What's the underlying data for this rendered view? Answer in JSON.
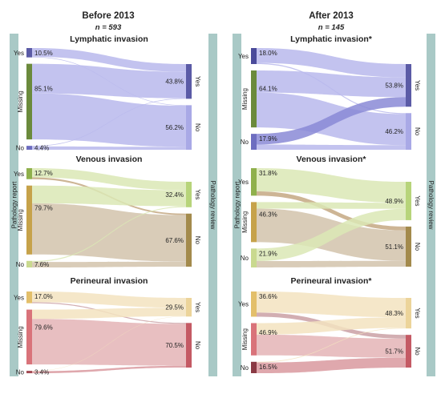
{
  "panels": [
    {
      "title": "Before 2013",
      "subtitle": "n = 593"
    },
    {
      "title": "After 2013",
      "subtitle": "n = 145"
    }
  ],
  "side_labels": {
    "left": "Pathology report",
    "right": "Pathology review"
  },
  "chart_data": [
    {
      "type": "sankey",
      "panel": "Before 2013",
      "subtitle": "n = 593",
      "left_axis_label": "Pathology report",
      "right_axis_label": "Pathology review",
      "colors": {
        "side_bar": "#a9c9c6"
      },
      "charts": [
        {
          "title": "Lymphatic invasion",
          "left_nodes": [
            {
              "label": "Yes",
              "value": "10.5%",
              "pct": 10.5,
              "color": "#5b5ba6"
            },
            {
              "label": "Missing",
              "value": "85.1%",
              "pct": 85.1,
              "color": "#6b8a3c"
            },
            {
              "label": "No",
              "value": "4.4%",
              "pct": 4.4,
              "color": "#6d6dc0"
            }
          ],
          "right_nodes": [
            {
              "label": "Yes",
              "value": "43.8%",
              "pct": 43.8,
              "color": "#5b5ba6"
            },
            {
              "label": "No",
              "value": "56.2%",
              "pct": 56.2,
              "color": "#a9a9e6"
            }
          ],
          "flows": [
            {
              "from": "Yes",
              "to": "Yes",
              "pct": 9.8
            },
            {
              "from": "Yes",
              "to": "No",
              "pct": 0.7
            },
            {
              "from": "Missing",
              "to": "Yes",
              "pct": 33.3
            },
            {
              "from": "Missing",
              "to": "No",
              "pct": 51.8
            },
            {
              "from": "No",
              "to": "Yes",
              "pct": 0.7
            },
            {
              "from": "No",
              "to": "No",
              "pct": 3.7
            }
          ],
          "flow_color": "#b8b8ec"
        },
        {
          "title": "Venous invasion",
          "left_nodes": [
            {
              "label": "Yes",
              "value": "12.7%",
              "pct": 12.7,
              "color": "#8fb04c"
            },
            {
              "label": "Missing",
              "value": "79.7%",
              "pct": 79.7,
              "color": "#c6a24a"
            },
            {
              "label": "No",
              "value": "7.6%",
              "pct": 7.6,
              "color": "#c9d98f"
            }
          ],
          "right_nodes": [
            {
              "label": "Yes",
              "value": "32.4%",
              "pct": 32.4,
              "color": "#b7d47a"
            },
            {
              "label": "No",
              "value": "67.6%",
              "pct": 67.6,
              "color": "#a38a4c"
            }
          ],
          "flows": [
            {
              "from": "Yes",
              "to": "Yes",
              "pct": 10.7,
              "color": "#dbe8b5"
            },
            {
              "from": "Yes",
              "to": "No",
              "pct": 2.0,
              "color": "#c4a882"
            },
            {
              "from": "Missing",
              "to": "Yes",
              "pct": 20.5,
              "color": "#dbe8b5"
            },
            {
              "from": "Missing",
              "to": "No",
              "pct": 59.2,
              "color": "#d2c3ac"
            },
            {
              "from": "No",
              "to": "Yes",
              "pct": 1.2,
              "color": "#dbe8b5"
            },
            {
              "from": "No",
              "to": "No",
              "pct": 6.4,
              "color": "#d2c3ac"
            }
          ]
        },
        {
          "title": "Perineural invasion",
          "left_nodes": [
            {
              "label": "Yes",
              "value": "17.0%",
              "pct": 17.0,
              "color": "#e3bf6a"
            },
            {
              "label": "Missing",
              "value": "79.6%",
              "pct": 79.6,
              "color": "#d9737a"
            },
            {
              "label": "No",
              "value": "3.4%",
              "pct": 3.4,
              "color": "#a34a54"
            }
          ],
          "right_nodes": [
            {
              "label": "Yes",
              "value": "29.5%",
              "pct": 29.5,
              "color": "#ecd49a"
            },
            {
              "label": "No",
              "value": "70.5%",
              "pct": 70.5,
              "color": "#c45a64"
            }
          ],
          "flows": [
            {
              "from": "Yes",
              "to": "Yes",
              "pct": 15.5,
              "color": "#f3e3c0"
            },
            {
              "from": "Yes",
              "to": "No",
              "pct": 1.5,
              "color": "#caa0a4"
            },
            {
              "from": "Missing",
              "to": "Yes",
              "pct": 13.5,
              "color": "#f3e3c0"
            },
            {
              "from": "Missing",
              "to": "No",
              "pct": 66.1,
              "color": "#e4b4b6"
            },
            {
              "from": "No",
              "to": "Yes",
              "pct": 0.5,
              "color": "#f3e3c0"
            },
            {
              "from": "No",
              "to": "No",
              "pct": 2.9,
              "color": "#d9999f"
            }
          ]
        }
      ]
    },
    {
      "type": "sankey",
      "panel": "After 2013",
      "subtitle": "n = 145",
      "left_axis_label": "Pathology report",
      "right_axis_label": "Pathology review",
      "colors": {
        "side_bar": "#a9c9c6"
      },
      "charts": [
        {
          "title": "Lymphatic invasion*",
          "left_nodes": [
            {
              "label": "Yes",
              "value": "18.0%",
              "pct": 18.0,
              "color": "#4a4a9a"
            },
            {
              "label": "Missing",
              "value": "64.1%",
              "pct": 64.1,
              "color": "#6b8a3c"
            },
            {
              "label": "No",
              "value": "17.9%",
              "pct": 17.9,
              "color": "#6d6dc0"
            }
          ],
          "right_nodes": [
            {
              "label": "Yes",
              "value": "53.8%",
              "pct": 53.8,
              "color": "#5b5ba6"
            },
            {
              "label": "No",
              "value": "46.2%",
              "pct": 46.2,
              "color": "#a9a9e6"
            }
          ],
          "flows": [
            {
              "from": "Yes",
              "to": "Yes",
              "pct": 16.8,
              "color": "#b8b8ec"
            },
            {
              "from": "Yes",
              "to": "No",
              "pct": 1.2,
              "color": "#b8b8ec"
            },
            {
              "from": "Missing",
              "to": "Yes",
              "pct": 24.9,
              "color": "#b8b8ec"
            },
            {
              "from": "Missing",
              "to": "No",
              "pct": 39.2,
              "color": "#b8b8ec"
            },
            {
              "from": "No",
              "to": "Yes",
              "pct": 12.1,
              "color": "#8a8ad6"
            },
            {
              "from": "No",
              "to": "No",
              "pct": 5.8,
              "color": "#b8b8ec"
            }
          ]
        },
        {
          "title": "Venous invasion*",
          "left_nodes": [
            {
              "label": "Yes",
              "value": "31.8%",
              "pct": 31.8,
              "color": "#8fb04c"
            },
            {
              "label": "Missing",
              "value": "46.3%",
              "pct": 46.3,
              "color": "#c6a24a"
            },
            {
              "label": "No",
              "value": "21.9%",
              "pct": 21.9,
              "color": "#c9d98f"
            }
          ],
          "right_nodes": [
            {
              "label": "Yes",
              "value": "48.9%",
              "pct": 48.9,
              "color": "#b7d47a"
            },
            {
              "label": "No",
              "value": "51.1%",
              "pct": 51.1,
              "color": "#a38a4c"
            }
          ],
          "flows": [
            {
              "from": "Yes",
              "to": "Yes",
              "pct": 26.8,
              "color": "#dbe8b5"
            },
            {
              "from": "Yes",
              "to": "No",
              "pct": 5.0,
              "color": "#c4a882"
            },
            {
              "from": "Missing",
              "to": "Yes",
              "pct": 7.6,
              "color": "#dbe8b5"
            },
            {
              "from": "Missing",
              "to": "No",
              "pct": 38.7,
              "color": "#d2c3ac"
            },
            {
              "from": "No",
              "to": "Yes",
              "pct": 14.5,
              "color": "#dbe8b5"
            },
            {
              "from": "No",
              "to": "No",
              "pct": 7.4,
              "color": "#d2c3ac"
            }
          ]
        },
        {
          "title": "Perineural invasion*",
          "left_nodes": [
            {
              "label": "Yes",
              "value": "36.6%",
              "pct": 36.6,
              "color": "#e3bf6a"
            },
            {
              "label": "Missing",
              "value": "46.9%",
              "pct": 46.9,
              "color": "#d9737a"
            },
            {
              "label": "No",
              "value": "16.5%",
              "pct": 16.5,
              "color": "#8a3a44"
            }
          ],
          "right_nodes": [
            {
              "label": "Yes",
              "value": "48.3%",
              "pct": 48.3,
              "color": "#ecd49a"
            },
            {
              "label": "No",
              "value": "51.7%",
              "pct": 51.7,
              "color": "#c45a64"
            }
          ],
          "flows": [
            {
              "from": "Yes",
              "to": "Yes",
              "pct": 30.6,
              "color": "#f3e3c0"
            },
            {
              "from": "Yes",
              "to": "No",
              "pct": 6.0,
              "color": "#caa0a4"
            },
            {
              "from": "Missing",
              "to": "Yes",
              "pct": 16.7,
              "color": "#f3e3c0"
            },
            {
              "from": "Missing",
              "to": "No",
              "pct": 30.2,
              "color": "#e4b4b6"
            },
            {
              "from": "No",
              "to": "Yes",
              "pct": 1.0,
              "color": "#f3e3c0"
            },
            {
              "from": "No",
              "to": "No",
              "pct": 15.5,
              "color": "#d9999f"
            }
          ]
        }
      ]
    }
  ]
}
